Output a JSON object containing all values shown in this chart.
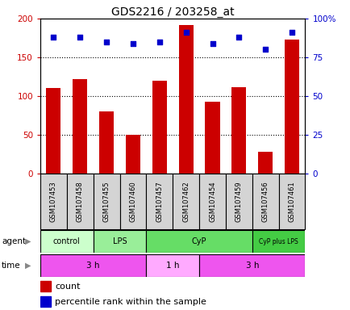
{
  "title": "GDS2216 / 203258_at",
  "samples": [
    "GSM107453",
    "GSM107458",
    "GSM107455",
    "GSM107460",
    "GSM107457",
    "GSM107462",
    "GSM107454",
    "GSM107459",
    "GSM107456",
    "GSM107461"
  ],
  "counts": [
    110,
    122,
    80,
    50,
    120,
    192,
    93,
    112,
    28,
    173
  ],
  "percentile_ranks": [
    88,
    88,
    85,
    84,
    85,
    91,
    84,
    88,
    80,
    91
  ],
  "count_color": "#cc0000",
  "percentile_color": "#0000cc",
  "ylim_left": [
    0,
    200
  ],
  "ylim_right": [
    0,
    100
  ],
  "yticks_left": [
    0,
    50,
    100,
    150,
    200
  ],
  "yticks_right": [
    0,
    25,
    50,
    75,
    100
  ],
  "ytick_labels_left": [
    "0",
    "50",
    "100",
    "150",
    "200"
  ],
  "ytick_labels_right": [
    "0",
    "25",
    "50",
    "75",
    "100%"
  ],
  "agent_labels": [
    {
      "text": "control",
      "start": 0,
      "end": 2,
      "color": "#ccffcc"
    },
    {
      "text": "LPS",
      "start": 2,
      "end": 4,
      "color": "#99ee99"
    },
    {
      "text": "CyP",
      "start": 4,
      "end": 8,
      "color": "#66dd66"
    },
    {
      "text": "CyP plus LPS",
      "start": 8,
      "end": 10,
      "color": "#44cc44"
    }
  ],
  "time_labels": [
    {
      "text": "3 h",
      "start": 0,
      "end": 4,
      "color": "#ee55ee"
    },
    {
      "text": "1 h",
      "start": 4,
      "end": 6,
      "color": "#ffaaff"
    },
    {
      "text": "3 h",
      "start": 6,
      "end": 10,
      "color": "#ee55ee"
    }
  ],
  "agent_row_label": "agent",
  "time_row_label": "time",
  "legend_count_label": "count",
  "legend_percentile_label": "percentile rank within the sample",
  "bar_width": 0.55,
  "grid_dotted_at": [
    50,
    100,
    150
  ],
  "sample_box_color": "#d4d4d4",
  "background_color": "#ffffff"
}
